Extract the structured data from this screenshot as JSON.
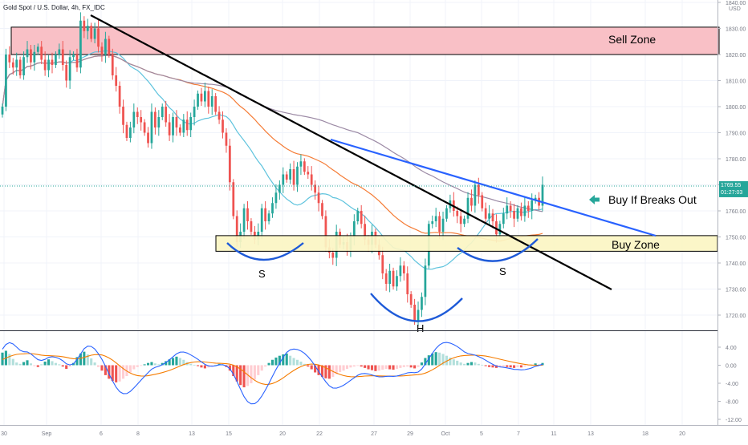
{
  "header": {
    "symbol": "Gold Spot / U.S. Dollar, 4h, FX_IDC",
    "currency": "USD"
  },
  "colors": {
    "bull": "#26a69a",
    "bear": "#ef5350",
    "sell_zone_fill": "#f9c0c6",
    "buy_zone_fill": "#fbf5c3",
    "trendline": "#000000",
    "channel_line": "#2962ff",
    "ma_fast": "#5ec3dd",
    "ma_mid": "#f57c36",
    "ma_slow": "#9c8aa5",
    "macd_line": "#2962ff",
    "signal_line": "#f57c00",
    "arc": "#1e5ad8",
    "price_badge": "#26a69a"
  },
  "annotations": {
    "sell_zone": "Sell Zone",
    "buy_zone": "Buy Zone",
    "breakout": "Buy If Breaks Out",
    "left_shoulder": "S",
    "head": "H",
    "right_shoulder": "S"
  },
  "price_badge": {
    "price": "1769.55",
    "countdown": "01:27:03"
  },
  "chart_data": {
    "type": "candlestick",
    "price_axis": {
      "ticks": [
        1840,
        1830,
        1820,
        1810,
        1800,
        1790,
        1780,
        1770,
        1760,
        1750,
        1740,
        1730,
        1720
      ],
      "tick_labels": [
        "1840.00",
        "1830.00",
        "1820.00",
        "1810.00",
        "1800.00",
        "1790.00",
        "1780.00",
        "1770.00",
        "1760.00",
        "1750.00",
        "1740.00",
        "1730.00",
        "1720.00"
      ],
      "range": [
        1713,
        1844
      ]
    },
    "time_axis": {
      "labels": [
        "30",
        "Sep",
        "6",
        "8",
        "13",
        "15",
        "20",
        "22",
        "27",
        "29",
        "Oct",
        "5",
        "7",
        "11",
        "13",
        "18",
        "20"
      ]
    },
    "sell_zone": [
      1820,
      1830.5
    ],
    "buy_zone": [
      1744.5,
      1750.5
    ],
    "current_price": 1769.55,
    "closes": [
      1800,
      1820,
      1817,
      1815,
      1818,
      1812,
      1819,
      1822,
      1817,
      1821,
      1823,
      1818,
      1814,
      1818,
      1816,
      1820,
      1822,
      1816,
      1810,
      1819,
      1820,
      1815,
      1833,
      1829,
      1831,
      1826,
      1830,
      1823,
      1820,
      1826,
      1820,
      1812,
      1808,
      1800,
      1793,
      1788,
      1792,
      1798,
      1796,
      1794,
      1790,
      1786,
      1798,
      1792,
      1796,
      1800,
      1794,
      1789,
      1796,
      1792,
      1790,
      1795,
      1791,
      1796,
      1800,
      1805,
      1802,
      1806,
      1800,
      1804,
      1798,
      1795,
      1790,
      1785,
      1771,
      1758,
      1748,
      1752,
      1761,
      1756,
      1752,
      1749,
      1752,
      1761,
      1756,
      1759,
      1763,
      1767,
      1770,
      1774,
      1772,
      1776,
      1770,
      1777,
      1779,
      1775,
      1774,
      1770,
      1767,
      1763,
      1758,
      1746,
      1744,
      1742,
      1752,
      1747,
      1748,
      1745,
      1750,
      1756,
      1760,
      1755,
      1749,
      1747,
      1752,
      1747,
      1743,
      1736,
      1732,
      1737,
      1731,
      1735,
      1739,
      1736,
      1728,
      1724,
      1718,
      1722,
      1727,
      1739,
      1755,
      1756,
      1758,
      1752,
      1757,
      1761,
      1764,
      1760,
      1758,
      1755,
      1757,
      1765,
      1762,
      1770,
      1766,
      1761,
      1757,
      1759,
      1756,
      1751,
      1755,
      1759,
      1762,
      1760,
      1757,
      1761,
      1758,
      1762,
      1760,
      1764,
      1765,
      1762,
      1770
    ],
    "macd_axis": {
      "ticks": [
        4,
        0,
        -4,
        -8,
        -12
      ],
      "tick_labels": [
        "4.00",
        "0.00",
        "-4.00",
        "-8.00",
        "-12.00"
      ],
      "range": [
        -13,
        7
      ]
    },
    "macd_hist": [
      2.8,
      3.2,
      2.5,
      1.4,
      0.6,
      0.3,
      0.7,
      1.1,
      0.4,
      -0.2,
      -0.4,
      0.2,
      0.8,
      1.3,
      0.9,
      0.5,
      0.2,
      -0.3,
      -0.8,
      -0.3,
      0.5,
      1.8,
      2.6,
      3.0,
      2.4,
      1.5,
      0.6,
      -0.4,
      -1.2,
      -2.2,
      -3.0,
      -3.5,
      -3.8,
      -3.6,
      -3.0,
      -2.4,
      -1.6,
      -0.9,
      -0.4,
      -0.1,
      0.2,
      0.5,
      0.7,
      0.4,
      0.2,
      0.5,
      0.9,
      1.3,
      1.6,
      1.9,
      1.6,
      1.2,
      0.7,
      0.3,
      0.1,
      -0.2,
      -0.5,
      -0.7,
      -0.5,
      -0.2,
      0.1,
      0.3,
      0.1,
      -0.4,
      -1.2,
      -2.4,
      -3.6,
      -4.4,
      -4.9,
      -4.6,
      -4.0,
      -3.2,
      -2.2,
      -1.2,
      -0.3,
      0.5,
      1.2,
      1.7,
      2.1,
      2.4,
      2.6,
      2.1,
      1.6,
      1.2,
      0.8,
      0.3,
      -0.3,
      -0.9,
      -1.6,
      -2.2,
      -2.6,
      -2.9,
      -3.0,
      -2.6,
      -2.0,
      -1.5,
      -1.2,
      -0.8,
      -0.5,
      -0.3,
      -0.1,
      -0.3,
      -0.6,
      -0.9,
      -1.1,
      -1.3,
      -1.2,
      -1.0,
      -0.8,
      -0.9,
      -1.0,
      -0.8,
      -0.6,
      -0.4,
      -0.3,
      -0.5,
      -0.7,
      -0.4,
      0.6,
      1.6,
      2.2,
      2.6,
      2.9,
      2.8,
      2.5,
      2.1,
      1.7,
      1.3,
      1.0,
      0.6,
      0.3,
      0.5,
      0.7,
      0.6,
      0.3,
      0.1,
      -0.2,
      -0.4,
      -0.5,
      -0.6,
      -0.4,
      -0.3,
      -0.4,
      -0.5,
      -0.6,
      -0.4,
      -0.5,
      -0.3,
      -0.1,
      0.1,
      0.4,
      0.2,
      0.5
    ],
    "title": "",
    "xlabel": "",
    "ylabel": ""
  }
}
